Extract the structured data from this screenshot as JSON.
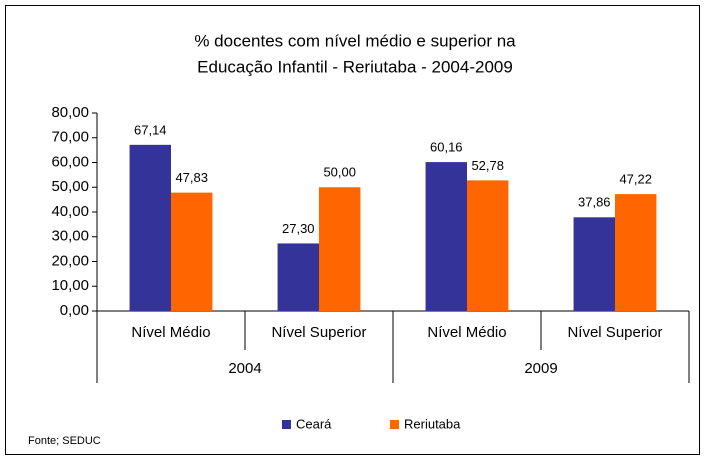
{
  "chart_data": {
    "type": "bar",
    "title": [
      "% docentes com nível médio e superior na",
      "Educação Infantil - Reriutaba - 2004-2009"
    ],
    "categories": [
      "Nível Médio",
      "Nível Superior",
      "Nível Médio",
      "Nível Superior"
    ],
    "groups": [
      "2004",
      "2009"
    ],
    "series": [
      {
        "name": "Ceará",
        "color": "#333399",
        "values": [
          67.14,
          27.3,
          60.16,
          37.86
        ],
        "value_labels": [
          "67,14",
          "27,30",
          "60,16",
          "37,86"
        ]
      },
      {
        "name": "Reriutaba",
        "color": "#ff6600",
        "values": [
          47.83,
          50.0,
          52.78,
          47.22
        ],
        "value_labels": [
          "47,83",
          "50,00",
          "52,78",
          "47,22"
        ]
      }
    ],
    "ylim": [
      0,
      80
    ],
    "yticks": [
      {
        "value": 0,
        "label": "0,00"
      },
      {
        "value": 10,
        "label": "10,00"
      },
      {
        "value": 20,
        "label": "20,00"
      },
      {
        "value": 30,
        "label": "30,00"
      },
      {
        "value": 40,
        "label": "40,00"
      },
      {
        "value": 50,
        "label": "50,00"
      },
      {
        "value": 60,
        "label": "60,00"
      },
      {
        "value": 70,
        "label": "70,00"
      },
      {
        "value": 80,
        "label": "80,00"
      }
    ],
    "grid": false,
    "legend": "bottom",
    "source": "Fonte; SEDUC"
  }
}
